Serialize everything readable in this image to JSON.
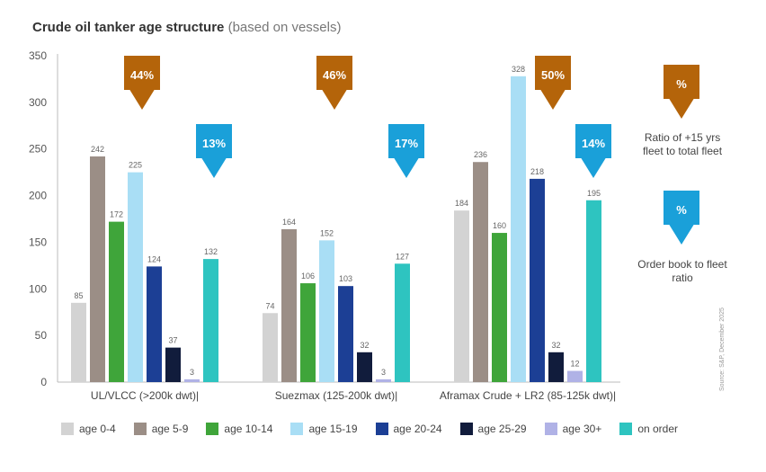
{
  "title": {
    "main": "Crude oil tanker age structure",
    "sub": "(based on vessels)"
  },
  "chart_data": {
    "type": "bar",
    "title": "Crude oil tanker age structure (based on vessels)",
    "xlabel": "",
    "ylabel": "",
    "ylim": [
      0,
      350
    ],
    "yticks": [
      0,
      50,
      100,
      150,
      200,
      250,
      300,
      350
    ],
    "grid": false,
    "categories": [
      "UL/VLCC (>200k dwt)|",
      "Suezmax (125-200k dwt)|",
      "Aframax Crude + LR2 (85-125k dwt)|"
    ],
    "series": [
      {
        "name": "age 0-4",
        "color": "#d3d3d3",
        "values": [
          85,
          74,
          184
        ]
      },
      {
        "name": "age 5-9",
        "color": "#9b8e86",
        "values": [
          242,
          164,
          236
        ]
      },
      {
        "name": "age 10-14",
        "color": "#3fa53a",
        "values": [
          172,
          106,
          160
        ]
      },
      {
        "name": "age 15-19",
        "color": "#a9def5",
        "values": [
          225,
          152,
          328
        ]
      },
      {
        "name": "age 20-24",
        "color": "#1c3f95",
        "values": [
          124,
          103,
          218
        ]
      },
      {
        "name": "age 25-29",
        "color": "#111c3c",
        "values": [
          37,
          32,
          32
        ]
      },
      {
        "name": "age 30+",
        "color": "#b0b2e6",
        "values": [
          3,
          3,
          12
        ]
      },
      {
        "name": "on order",
        "color": "#2ec4c0",
        "values": [
          132,
          127,
          195
        ]
      }
    ],
    "annotations": [
      {
        "group": 0,
        "kind": "fleet_ratio",
        "label": "44%",
        "color": "#b4640a"
      },
      {
        "group": 0,
        "kind": "order_ratio",
        "label": "13%",
        "color": "#1aa0d9"
      },
      {
        "group": 1,
        "kind": "fleet_ratio",
        "label": "46%",
        "color": "#b4640a"
      },
      {
        "group": 1,
        "kind": "order_ratio",
        "label": "17%",
        "color": "#1aa0d9"
      },
      {
        "group": 2,
        "kind": "fleet_ratio",
        "label": "50%",
        "color": "#b4640a"
      },
      {
        "group": 2,
        "kind": "order_ratio",
        "label": "14%",
        "color": "#1aa0d9"
      }
    ],
    "legend_position": "bottom"
  },
  "side_legend": {
    "fleet_symbol": "%",
    "fleet_text": "Ratio of +15 yrs fleet to total fleet",
    "order_symbol": "%",
    "order_text": "Order book to fleet ratio",
    "fleet_color": "#b4640a",
    "order_color": "#1aa0d9"
  },
  "source": "Source: S&P, December 2025"
}
